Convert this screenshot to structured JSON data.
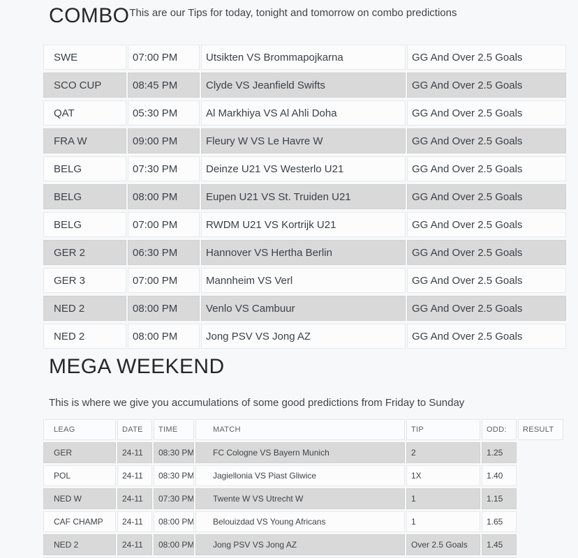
{
  "colors": {
    "page_background": "#f7f8f9",
    "row_light": "#fcfcfd",
    "row_gray": "#d9d9d9",
    "cell_border": "#e7e9eb",
    "heading_text": "#24272b",
    "body_text": "#3c4146",
    "table_header_text": "#5b6065"
  },
  "combo": {
    "title": "COMBO",
    "subtitle": "This are our Tips for today, tonight and tomorrow on combo predictions",
    "rows": [
      {
        "league": "SWE",
        "time": "07:00 PM",
        "match": "Utsikten VS Brommapojkarna",
        "prediction": "GG And Over 2.5 Goals"
      },
      {
        "league": "SCO CUP",
        "time": "08:45 PM",
        "match": "Clyde VS Jeanfield Swifts",
        "prediction": "GG And Over 2.5 Goals"
      },
      {
        "league": "QAT",
        "time": "05:30 PM",
        "match": "Al Markhiya VS Al Ahli Doha",
        "prediction": "GG And Over 2.5 Goals"
      },
      {
        "league": "FRA W",
        "time": "09:00 PM",
        "match": "Fleury W VS Le Havre W",
        "prediction": "GG And Over 2.5 Goals"
      },
      {
        "league": "BELG",
        "time": "07:30 PM",
        "match": "Deinze U21 VS Westerlo U21",
        "prediction": "GG And Over 2.5 Goals"
      },
      {
        "league": "BELG",
        "time": "08:00 PM",
        "match": "Eupen U21 VS St. Truiden U21",
        "prediction": "GG And Over 2.5 Goals"
      },
      {
        "league": "BELG",
        "time": "07:00 PM",
        "match": "RWDM U21 VS Kortrijk U21",
        "prediction": "GG And Over 2.5 Goals"
      },
      {
        "league": "GER 2",
        "time": "06:30 PM",
        "match": "Hannover VS Hertha Berlin",
        "prediction": "GG And Over 2.5 Goals"
      },
      {
        "league": "GER 3",
        "time": "07:00 PM",
        "match": "Mannheim VS Verl",
        "prediction": "GG And Over 2.5 Goals"
      },
      {
        "league": "NED 2",
        "time": "08:00 PM",
        "match": "Venlo VS Cambuur",
        "prediction": "GG And Over 2.5 Goals"
      },
      {
        "league": "NED 2",
        "time": "08:00 PM",
        "match": "Jong PSV VS Jong AZ",
        "prediction": "GG And Over 2.5 Goals"
      }
    ]
  },
  "mega_weekend": {
    "title": "MEGA WEEKEND",
    "description": "This is where we give you accumulations of some good predictions from Friday to Sunday",
    "headers": [
      "LEAG",
      "DATE",
      "TIME",
      "MATCH",
      "TIP",
      "ODD:",
      "RESULT"
    ],
    "rows": [
      {
        "league": "GER",
        "date": "24-11",
        "time": "08:30 PM",
        "match": "FC Cologne VS Bayern Munich",
        "tip": "2",
        "odd": "1.25",
        "result": ""
      },
      {
        "league": "POL",
        "date": "24-11",
        "time": "08:30 PM",
        "match": "Jagiellonia VS Piast Gliwice",
        "tip": "1X",
        "odd": "1.40",
        "result": ""
      },
      {
        "league": "NED W",
        "date": "24-11",
        "time": "07:30 PM",
        "match": "Twente W VS Utrecht W",
        "tip": "1",
        "odd": "1.15",
        "result": ""
      },
      {
        "league": "CAF CHAMP",
        "date": "24-11",
        "time": "08:00 PM",
        "match": "Belouizdad VS Young Africans",
        "tip": "1",
        "odd": "1.65",
        "result": ""
      },
      {
        "league": "NED 2",
        "date": "24-11",
        "time": "08:00 PM",
        "match": "Jong PSV VS Jong AZ",
        "tip": "Over 2.5 Goals",
        "odd": "1.45",
        "result": ""
      }
    ],
    "partial_row_visible": true
  }
}
